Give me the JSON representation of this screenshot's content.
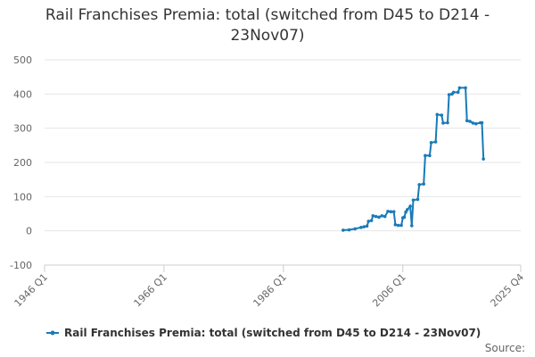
{
  "chart_data": {
    "type": "line",
    "title": "Rail Franchises Premia: total (switched from D45 to D214 - 23Nov07)",
    "source": "Source:",
    "x": [
      "1996 Q1",
      "1997 Q1",
      "1998 Q1",
      "1999 Q1",
      "1999 Q3",
      "2000 Q1",
      "2000 Q2",
      "2000 Q4",
      "2001 Q1",
      "2001 Q3",
      "2002 Q1",
      "2002 Q3",
      "2003 Q1",
      "2003 Q3",
      "2004 Q1",
      "2004 Q3",
      "2004 Q4",
      "2005 Q2",
      "2005 Q4",
      "2006 Q1",
      "2006 Q2",
      "2006 Q3",
      "2006 Q4",
      "2007 Q2",
      "2007 Q3",
      "2007 Q4",
      "2008 Q3",
      "2008 Q4",
      "2009 Q3",
      "2009 Q4",
      "2010 Q3",
      "2010 Q4",
      "2011 Q3",
      "2011 Q4",
      "2012 Q3",
      "2012 Q4",
      "2013 Q3",
      "2013 Q4",
      "2014 Q2",
      "2014 Q3",
      "2015 Q2",
      "2015 Q3",
      "2016 Q3",
      "2016 Q4",
      "2017 Q2",
      "2017 Q4",
      "2018 Q2",
      "2019 Q1",
      "2019 Q2",
      "2019 Q3"
    ],
    "series": [
      {
        "name": "Rail Franchises Premia: total (switched from D45 to D214 - 23Nov07)",
        "color": "#1a7ab8",
        "values": [
          2,
          3,
          6,
          10,
          12,
          14,
          28,
          30,
          44,
          42,
          40,
          44,
          42,
          57,
          56,
          56,
          18,
          16,
          16,
          38,
          40,
          55,
          62,
          72,
          15,
          90,
          92,
          135,
          137,
          220,
          220,
          258,
          260,
          340,
          338,
          315,
          316,
          398,
          400,
          405,
          405,
          418,
          418,
          322,
          320,
          315,
          313,
          316,
          316,
          210
        ]
      }
    ],
    "xlim": [
      "1946 Q1",
      "2025 Q4"
    ],
    "xticks": [
      "1946 Q1",
      "1966 Q1",
      "1986 Q1",
      "2006 Q1",
      "2025 Q4"
    ],
    "ylim": [
      -100,
      500
    ],
    "yticks": [
      -100,
      0,
      100,
      200,
      300,
      400,
      500
    ],
    "grid": true,
    "legend": "bottom"
  }
}
